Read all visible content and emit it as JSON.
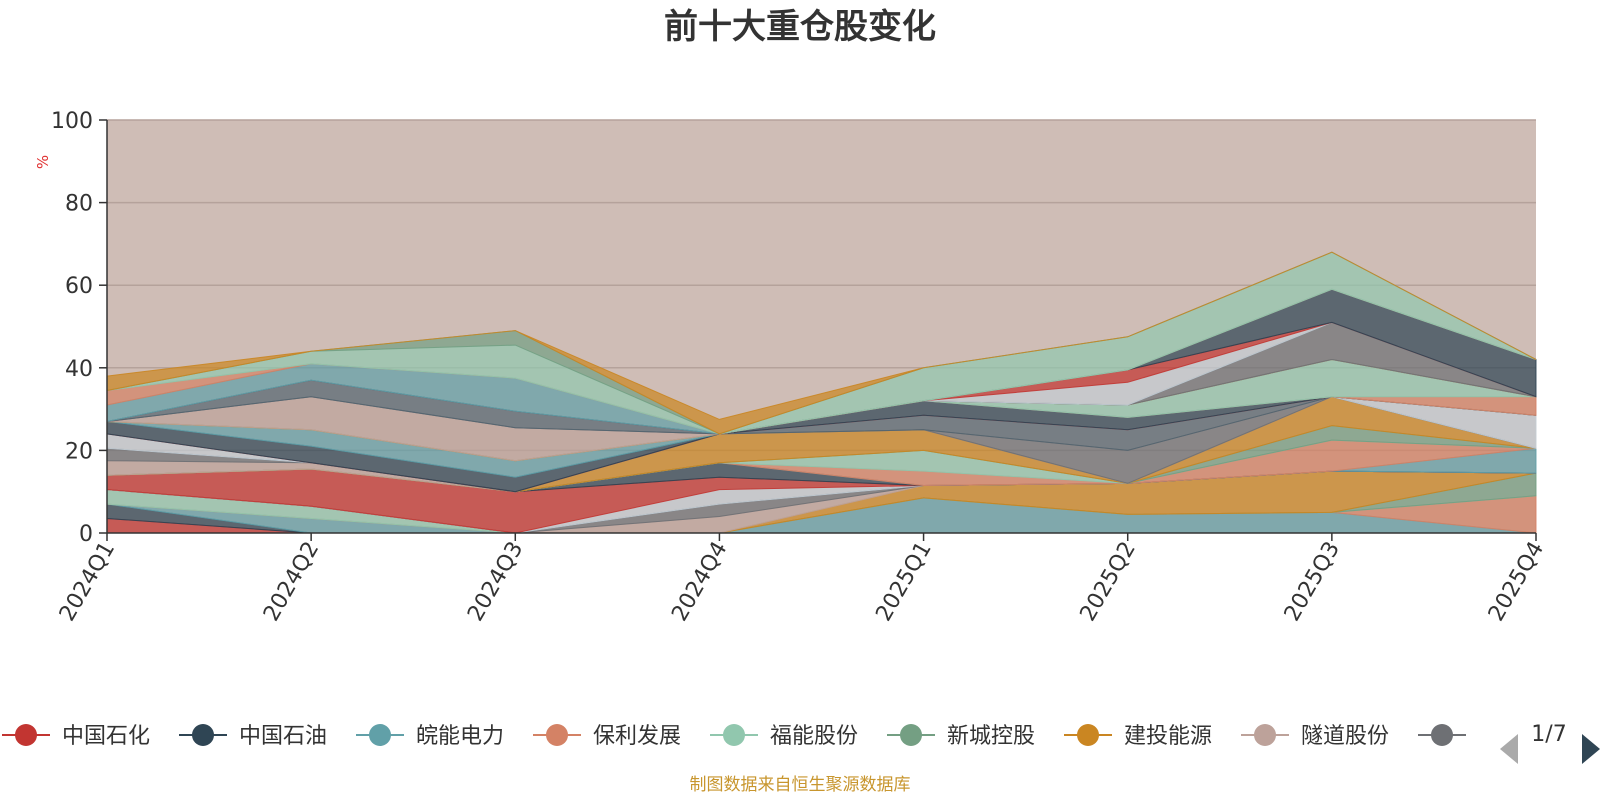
{
  "chart_data": {
    "type": "area",
    "title": "前十大重仓股变化",
    "ylabel": "%",
    "ylim": [
      0,
      100
    ],
    "yticks": [
      0,
      20,
      40,
      60,
      80,
      100
    ],
    "categories": [
      "2024Q1",
      "2024Q2",
      "2024Q3",
      "2024Q4",
      "2025Q1",
      "2025Q2",
      "2025Q3",
      "2025Q4"
    ],
    "grid": true,
    "stacked": true,
    "series": [
      {
        "name": "中国石化",
        "color": "#c23531",
        "values": [
          3.5,
          0,
          0,
          0,
          0,
          0,
          0,
          0
        ]
      },
      {
        "name": "中国石油",
        "color": "#2f4554",
        "values": [
          3.5,
          0,
          0,
          0,
          0,
          0,
          0,
          0
        ]
      },
      {
        "name": "皖能电力",
        "color": "#61a0a8",
        "values": [
          0,
          3.5,
          0,
          0,
          8.5,
          4.5,
          5,
          0
        ]
      },
      {
        "name": "保利发展",
        "color": "#d48265",
        "values": [
          0,
          0,
          0,
          0,
          0,
          0,
          0,
          9
        ]
      },
      {
        "name": "福能股份",
        "color": "#91c7ae",
        "values": [
          3.5,
          3,
          0,
          0,
          0,
          0,
          0,
          0
        ]
      },
      {
        "name": "新城控股",
        "color": "#749f83",
        "values": [
          0,
          0,
          0,
          0,
          0,
          0,
          0,
          5.5
        ]
      },
      {
        "name": "建投能源",
        "color": "#ca8622",
        "values": [
          0,
          0,
          0,
          0,
          3,
          7.5,
          10,
          0
        ]
      },
      {
        "name": "隧道股份",
        "color": "#bda29a",
        "values": [
          0,
          0,
          0,
          4,
          0,
          0,
          0,
          0
        ]
      },
      {
        "name": "",
        "color": "#6e7074",
        "values": [
          0,
          0,
          0,
          3,
          0,
          0,
          0,
          0
        ]
      },
      {
        "name": "",
        "color": "#546570",
        "values": [
          0,
          0,
          0,
          0,
          0,
          0,
          0,
          0
        ]
      },
      {
        "name": "",
        "color": "#c4ccd3",
        "values": [
          0,
          0,
          0,
          3.5,
          0,
          0,
          0,
          0
        ]
      },
      {
        "name": "",
        "color": "#c23531",
        "values": [
          3.5,
          9,
          10,
          3,
          0,
          0,
          0,
          0
        ]
      },
      {
        "name": "",
        "color": "#2f4554",
        "values": [
          0,
          0,
          0,
          3.5,
          0,
          0,
          0,
          0
        ]
      },
      {
        "name": "",
        "color": "#61a0a8",
        "values": [
          0,
          0,
          0,
          0,
          0,
          0,
          0,
          6
        ]
      },
      {
        "name": "",
        "color": "#d48265",
        "values": [
          0,
          0,
          0,
          0,
          3.5,
          0,
          7.5,
          0
        ]
      },
      {
        "name": "",
        "color": "#91c7ae",
        "values": [
          0,
          0,
          0,
          0,
          5,
          0,
          0,
          0
        ]
      },
      {
        "name": "",
        "color": "#749f83",
        "values": [
          0,
          0,
          0,
          0,
          0,
          0,
          3.5,
          0
        ]
      },
      {
        "name": "",
        "color": "#ca8622",
        "values": [
          0,
          0,
          0,
          7,
          5,
          0,
          7,
          0
        ]
      },
      {
        "name": "",
        "color": "#bda29a",
        "values": [
          3.5,
          1.5,
          0,
          0,
          0,
          0,
          0,
          0
        ]
      },
      {
        "name": "",
        "color": "#6e7074",
        "values": [
          3,
          0,
          0,
          0,
          0,
          8,
          0,
          0
        ]
      },
      {
        "name": "",
        "color": "#546570",
        "values": [
          0,
          0,
          0,
          0,
          3.5,
          5,
          0,
          0
        ]
      },
      {
        "name": "",
        "color": "#c4ccd3",
        "values": [
          3.5,
          0,
          0,
          0,
          0,
          0,
          0,
          8
        ]
      },
      {
        "name": "",
        "color": "#c23531",
        "values": [
          0,
          0,
          0,
          0,
          0,
          0,
          0,
          0
        ]
      },
      {
        "name": "",
        "color": "#2f4554",
        "values": [
          3,
          4,
          3.5,
          0,
          3.5,
          3,
          0,
          0
        ]
      },
      {
        "name": "",
        "color": "#61a0a8",
        "values": [
          0,
          4,
          4,
          0,
          0,
          0,
          0,
          0
        ]
      },
      {
        "name": "",
        "color": "#d48265",
        "values": [
          0,
          0,
          0,
          0,
          0,
          0,
          0,
          4.5
        ]
      },
      {
        "name": "",
        "color": "#91c7ae",
        "values": [
          0,
          0,
          0,
          0,
          0,
          3,
          9,
          0
        ]
      },
      {
        "name": "",
        "color": "#749f83",
        "values": [
          0,
          0,
          0,
          0,
          0,
          0,
          0,
          0
        ]
      },
      {
        "name": "",
        "color": "#ca8622",
        "values": [
          0,
          0,
          0,
          0,
          0,
          0,
          0,
          0
        ]
      },
      {
        "name": "",
        "color": "#bda29a",
        "values": [
          0,
          8,
          8,
          0,
          0,
          0,
          0,
          0
        ]
      },
      {
        "name": "",
        "color": "#6e7074",
        "values": [
          0,
          0,
          0,
          0,
          0,
          0,
          9,
          0
        ]
      },
      {
        "name": "",
        "color": "#546570",
        "values": [
          0,
          4,
          4,
          0,
          0,
          0,
          0,
          0
        ]
      },
      {
        "name": "",
        "color": "#c4ccd3",
        "values": [
          0,
          0,
          0,
          0,
          0,
          5.5,
          0,
          0
        ]
      },
      {
        "name": "",
        "color": "#c23531",
        "values": [
          0,
          0,
          0,
          0,
          0,
          3,
          0,
          0
        ]
      },
      {
        "name": "",
        "color": "#2f4554",
        "values": [
          0,
          0,
          0,
          0,
          0,
          0,
          8,
          9
        ]
      },
      {
        "name": "",
        "color": "#61a0a8",
        "values": [
          4,
          4,
          8,
          0,
          0,
          0,
          0,
          0
        ]
      },
      {
        "name": "",
        "color": "#d48265",
        "values": [
          3.5,
          0,
          0,
          0,
          0,
          0,
          0,
          0
        ]
      },
      {
        "name": "",
        "color": "#91c7ae",
        "values": [
          0,
          3,
          8,
          0,
          8,
          8,
          9,
          0
        ]
      },
      {
        "name": "",
        "color": "#749f83",
        "values": [
          0,
          0,
          3.5,
          0,
          0,
          0,
          0,
          0
        ]
      },
      {
        "name": "",
        "color": "#ca8622",
        "values": [
          3.5,
          0,
          0,
          3.5,
          0,
          0,
          0,
          0
        ]
      }
    ]
  },
  "legend": {
    "items": [
      {
        "name": "中国石化",
        "color": "#c23531"
      },
      {
        "name": "中国石油",
        "color": "#2f4554"
      },
      {
        "name": "皖能电力",
        "color": "#61a0a8"
      },
      {
        "name": "保利发展",
        "color": "#d48265"
      },
      {
        "name": "福能股份",
        "color": "#91c7ae"
      },
      {
        "name": "新城控股",
        "color": "#749f83"
      },
      {
        "name": "建投能源",
        "color": "#ca8622"
      },
      {
        "name": "隧道股份",
        "color": "#bda29a"
      },
      {
        "name": "",
        "color": "#6e7074"
      }
    ],
    "page": "1/7",
    "prev_icon": "triangle-left-icon",
    "next_icon": "triangle-right-icon"
  },
  "source": "制图数据来自恒生聚源数据库",
  "background_color": "#cfbdb6"
}
